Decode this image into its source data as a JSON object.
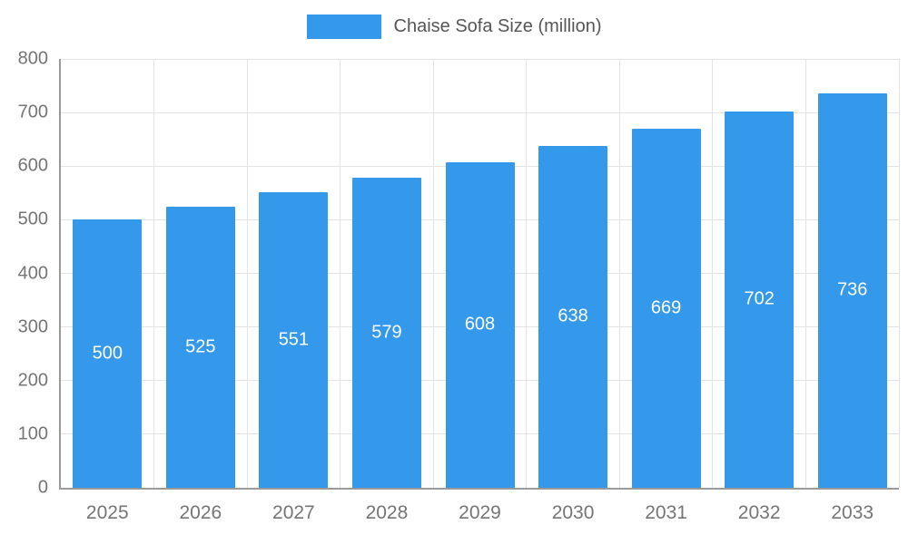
{
  "chart_data": {
    "type": "bar",
    "title": "Chaise Sofa Size (million)",
    "categories": [
      "2025",
      "2026",
      "2027",
      "2028",
      "2029",
      "2030",
      "2031",
      "2032",
      "2033"
    ],
    "values": [
      500,
      525,
      551,
      579,
      608,
      638,
      669,
      702,
      736
    ],
    "xlabel": "",
    "ylabel": "",
    "ylim": [
      0,
      800
    ],
    "y_ticks": [
      0,
      100,
      200,
      300,
      400,
      500,
      600,
      700,
      800
    ],
    "grid": true,
    "legend_position": "top",
    "colors": {
      "bar": "#3498eb",
      "axis_text": "#757575",
      "legend_text": "#555555",
      "gridline": "#e3e3e3",
      "axis_line": "#9a9a9a",
      "value_label": "#ffffff"
    }
  }
}
